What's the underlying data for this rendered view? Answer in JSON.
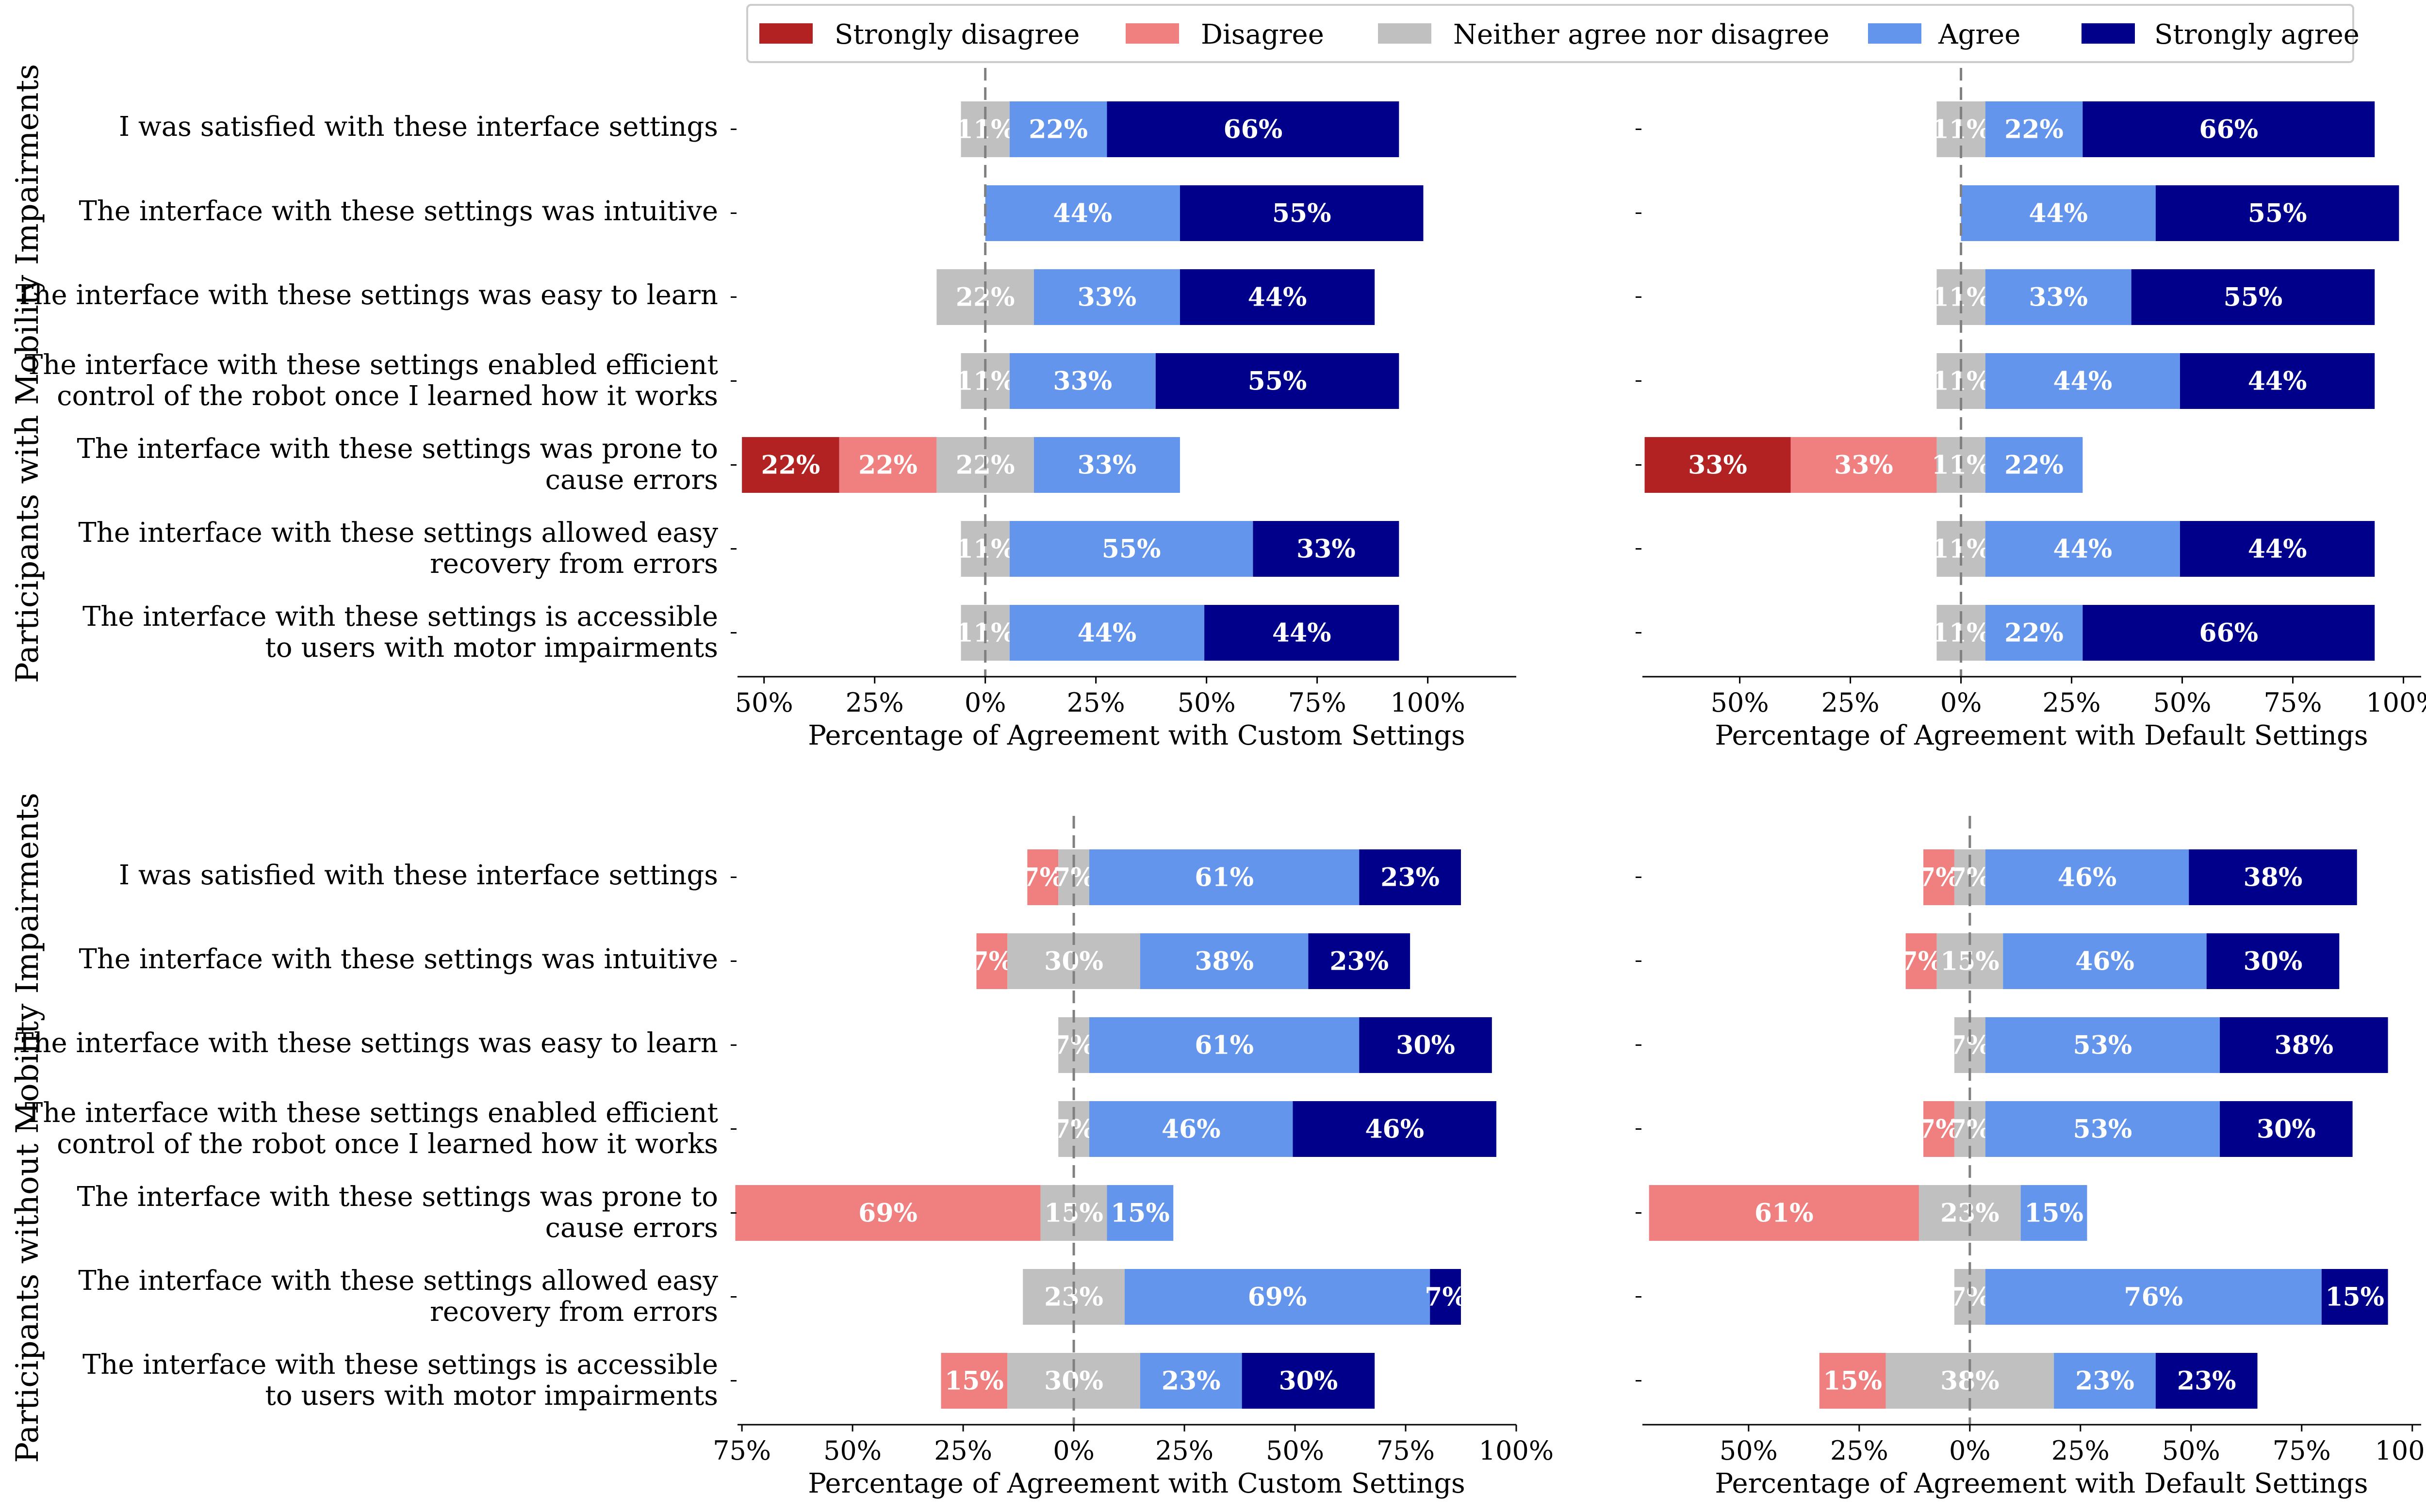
{
  "legend": [
    {
      "label": "Strongly disagree",
      "color": "#b22222"
    },
    {
      "label": "Disagree",
      "color": "#f08080"
    },
    {
      "label": "Neither agree nor disagree",
      "color": "#c0c0c0"
    },
    {
      "label": "Agree",
      "color": "#6495ed"
    },
    {
      "label": "Strongly agree",
      "color": "#00008b"
    }
  ],
  "questions": [
    [
      "I was satisfied with these interface settings"
    ],
    [
      "The interface with these settings was intuitive"
    ],
    [
      "The interface with these settings was easy to learn"
    ],
    [
      "The interface with these settings enabled efficient",
      "control of the robot once I learned how it works"
    ],
    [
      "The interface with these settings was prone to",
      "cause errors"
    ],
    [
      "The interface with these settings allowed easy",
      "recovery from errors"
    ],
    [
      "The interface with these settings is accessible",
      "to users with motor impairments"
    ]
  ],
  "group_titles": [
    "Participants with Mobility Impairments",
    "Participants without Mobility Impairments"
  ],
  "chart_data": [
    {
      "type": "bar",
      "orientation": "horizontal-diverging-stacked",
      "group": "Participants with Mobility Impairments",
      "xlabel": "Percentage of Agreement with Custom Settings",
      "xlim": [
        -56,
        120
      ],
      "ticks": [
        -50,
        -25,
        0,
        25,
        50,
        75,
        100
      ],
      "tick_labels": [
        "50%",
        "25%",
        "0%",
        "25%",
        "50%",
        "75%",
        "100%"
      ],
      "series_order": [
        "Strongly disagree",
        "Disagree",
        "Neither agree nor disagree",
        "Agree",
        "Strongly agree"
      ],
      "rows": [
        {
          "values": [
            0,
            0,
            11,
            22,
            66
          ],
          "labels": [
            "",
            "",
            "11%",
            "22%",
            "66%"
          ]
        },
        {
          "values": [
            0,
            0,
            0,
            44,
            55
          ],
          "labels": [
            "",
            "",
            "",
            "44%",
            "55%"
          ]
        },
        {
          "values": [
            0,
            0,
            22,
            33,
            44
          ],
          "labels": [
            "",
            "",
            "22%",
            "33%",
            "44%"
          ]
        },
        {
          "values": [
            0,
            0,
            11,
            33,
            55
          ],
          "labels": [
            "",
            "",
            "11%",
            "33%",
            "55%"
          ]
        },
        {
          "values": [
            22,
            22,
            22,
            33,
            0
          ],
          "labels": [
            "22%",
            "22%",
            "22%",
            "33%",
            ""
          ]
        },
        {
          "values": [
            0,
            0,
            11,
            55,
            33
          ],
          "labels": [
            "",
            "",
            "11%",
            "55%",
            "33%"
          ]
        },
        {
          "values": [
            0,
            0,
            11,
            44,
            44
          ],
          "labels": [
            "",
            "",
            "11%",
            "44%",
            "44%"
          ]
        }
      ]
    },
    {
      "type": "bar",
      "orientation": "horizontal-diverging-stacked",
      "group": "Participants with Mobility Impairments",
      "xlabel": "Percentage of Agreement with Default Settings",
      "xlim": [
        -72,
        104
      ],
      "ticks": [
        -50,
        -25,
        0,
        25,
        50,
        75,
        100
      ],
      "tick_labels": [
        "50%",
        "25%",
        "0%",
        "25%",
        "50%",
        "75%",
        "100%"
      ],
      "series_order": [
        "Strongly disagree",
        "Disagree",
        "Neither agree nor disagree",
        "Agree",
        "Strongly agree"
      ],
      "rows": [
        {
          "values": [
            0,
            0,
            11,
            22,
            66
          ],
          "labels": [
            "",
            "",
            "11%",
            "22%",
            "66%"
          ]
        },
        {
          "values": [
            0,
            0,
            0,
            44,
            55
          ],
          "labels": [
            "",
            "",
            "",
            "44%",
            "55%"
          ]
        },
        {
          "values": [
            0,
            0,
            11,
            33,
            55
          ],
          "labels": [
            "",
            "",
            "11%",
            "33%",
            "55%"
          ]
        },
        {
          "values": [
            0,
            0,
            11,
            44,
            44
          ],
          "labels": [
            "",
            "",
            "11%",
            "44%",
            "44%"
          ]
        },
        {
          "values": [
            33,
            33,
            11,
            22,
            0
          ],
          "labels": [
            "33%",
            "33%",
            "11%",
            "22%",
            ""
          ]
        },
        {
          "values": [
            0,
            0,
            11,
            44,
            44
          ],
          "labels": [
            "",
            "",
            "11%",
            "44%",
            "44%"
          ]
        },
        {
          "values": [
            0,
            0,
            11,
            22,
            66
          ],
          "labels": [
            "",
            "",
            "11%",
            "22%",
            "66%"
          ]
        }
      ]
    },
    {
      "type": "bar",
      "orientation": "horizontal-diverging-stacked",
      "group": "Participants without Mobility Impairments",
      "xlabel": "Percentage of Agreement with Custom Settings",
      "xlim": [
        -76,
        100
      ],
      "ticks": [
        -75,
        -50,
        -25,
        0,
        25,
        50,
        75,
        100
      ],
      "tick_labels": [
        "75%",
        "50%",
        "25%",
        "0%",
        "25%",
        "50%",
        "75%",
        "100%"
      ],
      "series_order": [
        "Strongly disagree",
        "Disagree",
        "Neither agree nor disagree",
        "Agree",
        "Strongly agree"
      ],
      "rows": [
        {
          "values": [
            0,
            7,
            7,
            61,
            23
          ],
          "labels": [
            "",
            "7%",
            "7%",
            "61%",
            "23%"
          ]
        },
        {
          "values": [
            0,
            7,
            30,
            38,
            23
          ],
          "labels": [
            "",
            "7%",
            "30%",
            "38%",
            "23%"
          ]
        },
        {
          "values": [
            0,
            0,
            7,
            61,
            30
          ],
          "labels": [
            "",
            "",
            "7%",
            "61%",
            "30%"
          ]
        },
        {
          "values": [
            0,
            0,
            7,
            46,
            46
          ],
          "labels": [
            "",
            "",
            "7%",
            "46%",
            "46%"
          ]
        },
        {
          "values": [
            0,
            69,
            15,
            15,
            0
          ],
          "labels": [
            "",
            "69%",
            "15%",
            "15%",
            ""
          ]
        },
        {
          "values": [
            0,
            0,
            23,
            69,
            7
          ],
          "labels": [
            "",
            "",
            "23%",
            "69%",
            "7%"
          ]
        },
        {
          "values": [
            0,
            15,
            30,
            23,
            30
          ],
          "labels": [
            "",
            "15%",
            "30%",
            "23%",
            "30%"
          ]
        }
      ]
    },
    {
      "type": "bar",
      "orientation": "horizontal-diverging-stacked",
      "group": "Participants without Mobility Impairments",
      "xlabel": "Percentage of Agreement with Default Settings",
      "xlim": [
        -74,
        102
      ],
      "ticks": [
        -50,
        -25,
        0,
        25,
        50,
        75,
        100
      ],
      "tick_labels": [
        "50%",
        "25%",
        "0%",
        "25%",
        "50%",
        "75%",
        "100%"
      ],
      "series_order": [
        "Strongly disagree",
        "Disagree",
        "Neither agree nor disagree",
        "Agree",
        "Strongly agree"
      ],
      "rows": [
        {
          "values": [
            0,
            7,
            7,
            46,
            38
          ],
          "labels": [
            "",
            "7%",
            "7%",
            "46%",
            "38%"
          ]
        },
        {
          "values": [
            0,
            7,
            15,
            46,
            30
          ],
          "labels": [
            "",
            "7%",
            "15%",
            "46%",
            "30%"
          ]
        },
        {
          "values": [
            0,
            0,
            7,
            53,
            38
          ],
          "labels": [
            "",
            "",
            "7%",
            "53%",
            "38%"
          ]
        },
        {
          "values": [
            0,
            7,
            7,
            53,
            30
          ],
          "labels": [
            "",
            "7%",
            "7%",
            "53%",
            "30%"
          ]
        },
        {
          "values": [
            0,
            61,
            23,
            15,
            0
          ],
          "labels": [
            "",
            "61%",
            "23%",
            "15%",
            ""
          ]
        },
        {
          "values": [
            0,
            0,
            7,
            76,
            15
          ],
          "labels": [
            "",
            "",
            "7%",
            "76%",
            "15%"
          ]
        },
        {
          "values": [
            0,
            15,
            38,
            23,
            23
          ],
          "labels": [
            "",
            "15%",
            "38%",
            "23%",
            "23%"
          ]
        }
      ]
    }
  ]
}
